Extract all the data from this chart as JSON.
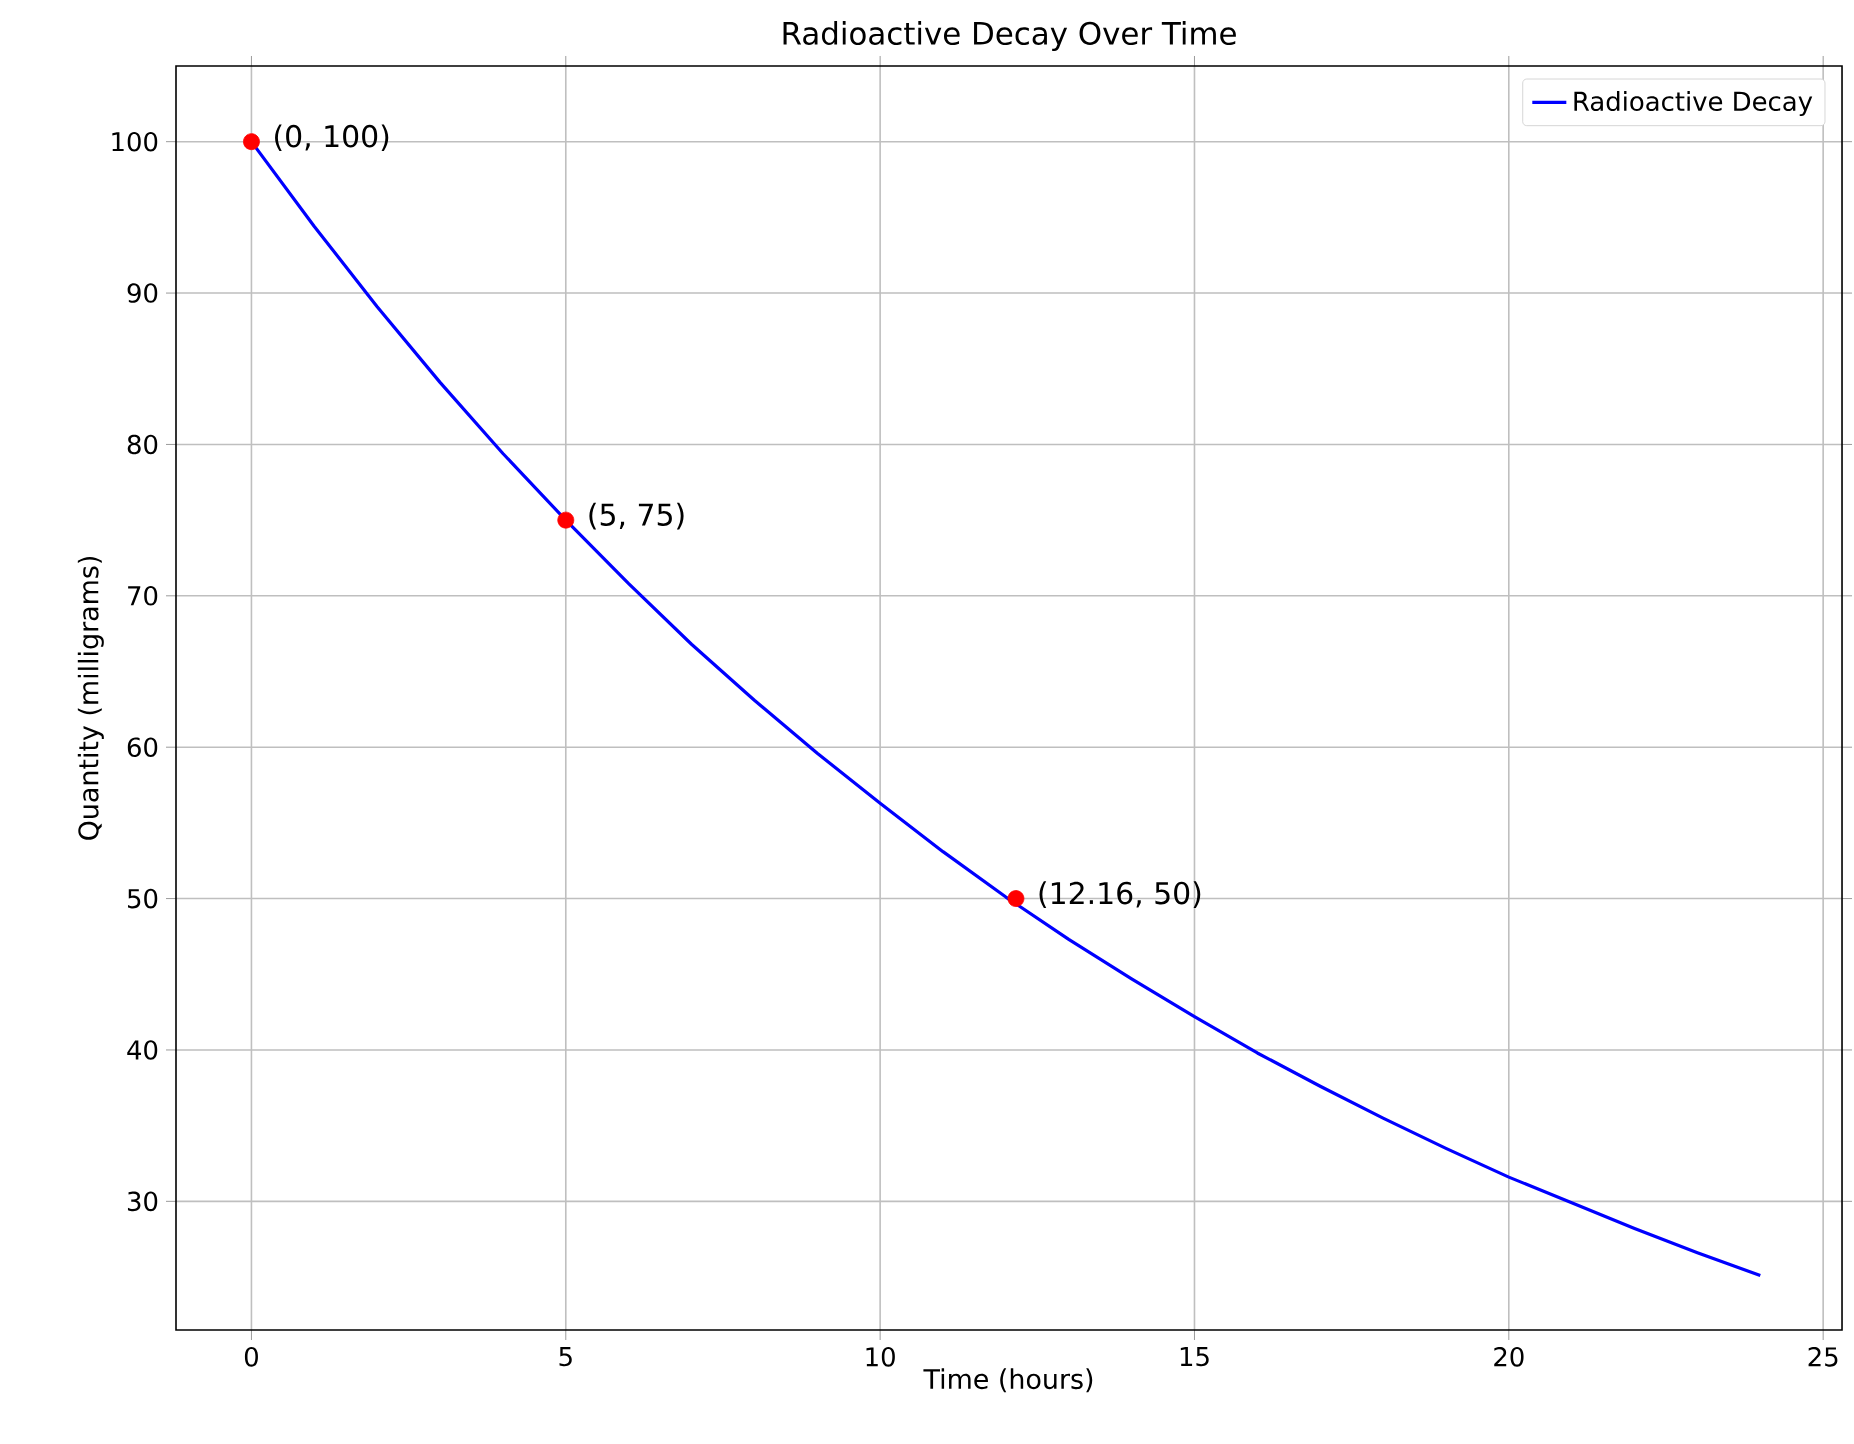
{
  "chart_data": {
    "type": "line",
    "title": "Radioactive Decay Over Time",
    "xlabel": "Time (hours)",
    "ylabel": "Quantity (milligrams)",
    "series": [
      {
        "name": "Radioactive Decay",
        "color": "#0000ff",
        "marker": "none",
        "line_style": "solid",
        "x": [
          0,
          1,
          2,
          3,
          4,
          5,
          6,
          7,
          8,
          9,
          10,
          11,
          12,
          13,
          14,
          15,
          16,
          17,
          18,
          19,
          20,
          21,
          22,
          23,
          24
        ],
        "values": [
          100,
          94.4,
          89.1,
          84.1,
          79.4,
          75.0,
          70.8,
          66.8,
          63.1,
          59.6,
          56.3,
          53.1,
          50.1,
          47.3,
          44.7,
          42.2,
          39.8,
          37.6,
          35.5,
          33.5,
          31.6,
          29.9,
          28.2,
          26.6,
          25.1
        ]
      },
      {
        "type": "scatter",
        "color": "#ff0000",
        "marker": "circle",
        "x": [
          0,
          5,
          12.16
        ],
        "values": [
          100,
          75,
          50
        ]
      }
    ],
    "annotations": [
      {
        "text": "(0, 100)",
        "x": 0,
        "y": 100
      },
      {
        "text": "(5, 75)",
        "x": 5,
        "y": 75
      },
      {
        "text": "(12.16, 50)",
        "x": 12.16,
        "y": 50
      }
    ],
    "xlim": [
      -1.2,
      25.3
    ],
    "ylim": [
      21.5,
      105
    ],
    "xticks": [
      0,
      5,
      10,
      15,
      20,
      25
    ],
    "yticks": [
      30,
      40,
      50,
      60,
      70,
      80,
      90,
      100
    ],
    "grid": true,
    "legend": "top right"
  }
}
